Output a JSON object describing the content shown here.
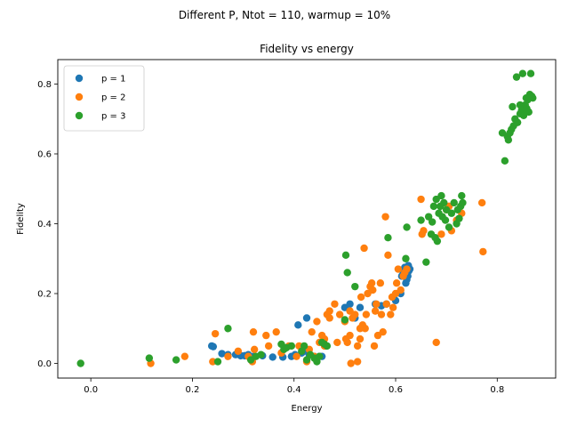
{
  "figure": {
    "suptitle": "Different P, Ntot = 110, warmup = 10%"
  },
  "chart_data": {
    "type": "scatter",
    "title": "Fidelity vs energy",
    "xlabel": "Energy",
    "ylabel": "Fidelity",
    "xlim": [
      -0.065,
      0.915
    ],
    "ylim": [
      -0.042,
      0.87
    ],
    "xticks": [
      0.0,
      0.2,
      0.4,
      0.6,
      0.8
    ],
    "yticks": [
      0.0,
      0.2,
      0.4,
      0.6,
      0.8
    ],
    "xtick_labels": [
      "0.0",
      "0.2",
      "0.4",
      "0.6",
      "0.8"
    ],
    "ytick_labels": [
      "0.0",
      "0.2",
      "0.4",
      "0.6",
      "0.8"
    ],
    "grid": false,
    "legend": "upper-left",
    "series": [
      {
        "name": "p = 1",
        "color": "#1f77b4",
        "points": [
          [
            0.238,
            0.05
          ],
          [
            0.241,
            0.048
          ],
          [
            0.258,
            0.028
          ],
          [
            0.27,
            0.025
          ],
          [
            0.285,
            0.025
          ],
          [
            0.295,
            0.022
          ],
          [
            0.303,
            0.022
          ],
          [
            0.31,
            0.025
          ],
          [
            0.32,
            0.02
          ],
          [
            0.338,
            0.022
          ],
          [
            0.358,
            0.018
          ],
          [
            0.378,
            0.018
          ],
          [
            0.395,
            0.02
          ],
          [
            0.402,
            0.025
          ],
          [
            0.408,
            0.11
          ],
          [
            0.415,
            0.03
          ],
          [
            0.42,
            0.035
          ],
          [
            0.425,
            0.13
          ],
          [
            0.43,
            0.025
          ],
          [
            0.44,
            0.02
          ],
          [
            0.45,
            0.02
          ],
          [
            0.455,
            0.02
          ],
          [
            0.462,
            0.05
          ],
          [
            0.5,
            0.16
          ],
          [
            0.51,
            0.17
          ],
          [
            0.52,
            0.13
          ],
          [
            0.53,
            0.16
          ],
          [
            0.56,
            0.17
          ],
          [
            0.572,
            0.165
          ],
          [
            0.582,
            0.17
          ],
          [
            0.6,
            0.18
          ],
          [
            0.61,
            0.2
          ],
          [
            0.612,
            0.25
          ],
          [
            0.615,
            0.26
          ],
          [
            0.618,
            0.27
          ],
          [
            0.62,
            0.23
          ],
          [
            0.622,
            0.24
          ],
          [
            0.624,
            0.25
          ],
          [
            0.625,
            0.28
          ],
          [
            0.626,
            0.265
          ],
          [
            0.628,
            0.27
          ],
          [
            0.618,
            0.275
          ]
        ]
      },
      {
        "name": "p = 2",
        "color": "#ff7f0e",
        "points": [
          [
            0.118,
            0.0
          ],
          [
            0.185,
            0.02
          ],
          [
            0.24,
            0.005
          ],
          [
            0.245,
            0.085
          ],
          [
            0.27,
            0.02
          ],
          [
            0.29,
            0.035
          ],
          [
            0.31,
            0.02
          ],
          [
            0.318,
            0.005
          ],
          [
            0.32,
            0.09
          ],
          [
            0.322,
            0.04
          ],
          [
            0.345,
            0.08
          ],
          [
            0.365,
            0.09
          ],
          [
            0.375,
            0.03
          ],
          [
            0.39,
            0.05
          ],
          [
            0.405,
            0.02
          ],
          [
            0.41,
            0.05
          ],
          [
            0.425,
            0.005
          ],
          [
            0.43,
            0.04
          ],
          [
            0.435,
            0.09
          ],
          [
            0.44,
            0.02
          ],
          [
            0.445,
            0.12
          ],
          [
            0.45,
            0.06
          ],
          [
            0.455,
            0.08
          ],
          [
            0.46,
            0.07
          ],
          [
            0.465,
            0.14
          ],
          [
            0.47,
            0.15
          ],
          [
            0.48,
            0.17
          ],
          [
            0.485,
            0.06
          ],
          [
            0.49,
            0.14
          ],
          [
            0.5,
            0.12
          ],
          [
            0.502,
            0.07
          ],
          [
            0.505,
            0.06
          ],
          [
            0.51,
            0.15
          ],
          [
            0.512,
            0.0
          ],
          [
            0.515,
            0.13
          ],
          [
            0.52,
            0.14
          ],
          [
            0.525,
            0.05
          ],
          [
            0.53,
            0.07
          ],
          [
            0.532,
            0.19
          ],
          [
            0.535,
            0.11
          ],
          [
            0.538,
            0.33
          ],
          [
            0.54,
            0.1
          ],
          [
            0.542,
            0.14
          ],
          [
            0.545,
            0.2
          ],
          [
            0.55,
            0.22
          ],
          [
            0.553,
            0.23
          ],
          [
            0.555,
            0.21
          ],
          [
            0.558,
            0.05
          ],
          [
            0.56,
            0.15
          ],
          [
            0.562,
            0.17
          ],
          [
            0.565,
            0.08
          ],
          [
            0.57,
            0.23
          ],
          [
            0.572,
            0.14
          ],
          [
            0.575,
            0.09
          ],
          [
            0.58,
            0.42
          ],
          [
            0.582,
            0.17
          ],
          [
            0.585,
            0.31
          ],
          [
            0.59,
            0.14
          ],
          [
            0.593,
            0.19
          ],
          [
            0.595,
            0.16
          ],
          [
            0.6,
            0.2
          ],
          [
            0.602,
            0.23
          ],
          [
            0.605,
            0.27
          ],
          [
            0.61,
            0.21
          ],
          [
            0.615,
            0.25
          ],
          [
            0.618,
            0.26
          ],
          [
            0.622,
            0.27
          ],
          [
            0.65,
            0.47
          ],
          [
            0.652,
            0.37
          ],
          [
            0.655,
            0.38
          ],
          [
            0.68,
            0.06
          ],
          [
            0.69,
            0.37
          ],
          [
            0.7,
            0.44
          ],
          [
            0.705,
            0.45
          ],
          [
            0.71,
            0.38
          ],
          [
            0.72,
            0.41
          ],
          [
            0.73,
            0.43
          ],
          [
            0.77,
            0.46
          ],
          [
            0.772,
            0.32
          ],
          [
            0.525,
            0.005
          ],
          [
            0.53,
            0.1
          ],
          [
            0.51,
            0.08
          ],
          [
            0.47,
            0.13
          ],
          [
            0.46,
            0.05
          ],
          [
            0.35,
            0.05
          ]
        ]
      },
      {
        "name": "p = 3",
        "color": "#2ca02c",
        "points": [
          [
            -0.02,
            0.0
          ],
          [
            0.115,
            0.015
          ],
          [
            0.168,
            0.01
          ],
          [
            0.25,
            0.005
          ],
          [
            0.27,
            0.1
          ],
          [
            0.315,
            0.01
          ],
          [
            0.325,
            0.02
          ],
          [
            0.335,
            0.025
          ],
          [
            0.375,
            0.055
          ],
          [
            0.38,
            0.04
          ],
          [
            0.385,
            0.045
          ],
          [
            0.395,
            0.05
          ],
          [
            0.415,
            0.035
          ],
          [
            0.42,
            0.05
          ],
          [
            0.425,
            0.01
          ],
          [
            0.432,
            0.025
          ],
          [
            0.44,
            0.015
          ],
          [
            0.445,
            0.005
          ],
          [
            0.45,
            0.02
          ],
          [
            0.455,
            0.06
          ],
          [
            0.46,
            0.055
          ],
          [
            0.465,
            0.05
          ],
          [
            0.5,
            0.125
          ],
          [
            0.502,
            0.31
          ],
          [
            0.505,
            0.26
          ],
          [
            0.52,
            0.22
          ],
          [
            0.585,
            0.36
          ],
          [
            0.62,
            0.3
          ],
          [
            0.622,
            0.39
          ],
          [
            0.65,
            0.41
          ],
          [
            0.66,
            0.29
          ],
          [
            0.665,
            0.42
          ],
          [
            0.67,
            0.37
          ],
          [
            0.672,
            0.405
          ],
          [
            0.675,
            0.45
          ],
          [
            0.678,
            0.36
          ],
          [
            0.68,
            0.47
          ],
          [
            0.682,
            0.35
          ],
          [
            0.685,
            0.43
          ],
          [
            0.688,
            0.45
          ],
          [
            0.69,
            0.48
          ],
          [
            0.692,
            0.42
          ],
          [
            0.695,
            0.46
          ],
          [
            0.698,
            0.41
          ],
          [
            0.7,
            0.44
          ],
          [
            0.705,
            0.39
          ],
          [
            0.71,
            0.43
          ],
          [
            0.715,
            0.46
          ],
          [
            0.72,
            0.4
          ],
          [
            0.722,
            0.44
          ],
          [
            0.725,
            0.415
          ],
          [
            0.728,
            0.45
          ],
          [
            0.73,
            0.48
          ],
          [
            0.732,
            0.46
          ],
          [
            0.81,
            0.66
          ],
          [
            0.815,
            0.58
          ],
          [
            0.82,
            0.65
          ],
          [
            0.822,
            0.64
          ],
          [
            0.825,
            0.66
          ],
          [
            0.828,
            0.67
          ],
          [
            0.83,
            0.735
          ],
          [
            0.832,
            0.68
          ],
          [
            0.835,
            0.7
          ],
          [
            0.838,
            0.82
          ],
          [
            0.84,
            0.69
          ],
          [
            0.845,
            0.74
          ],
          [
            0.848,
            0.725
          ],
          [
            0.85,
            0.83
          ],
          [
            0.852,
            0.71
          ],
          [
            0.855,
            0.74
          ],
          [
            0.857,
            0.76
          ],
          [
            0.858,
            0.73
          ],
          [
            0.86,
            0.755
          ],
          [
            0.862,
            0.72
          ],
          [
            0.864,
            0.77
          ],
          [
            0.866,
            0.83
          ],
          [
            0.868,
            0.765
          ],
          [
            0.87,
            0.76
          ],
          [
            0.855,
            0.72
          ],
          [
            0.845,
            0.715
          ]
        ]
      }
    ]
  }
}
